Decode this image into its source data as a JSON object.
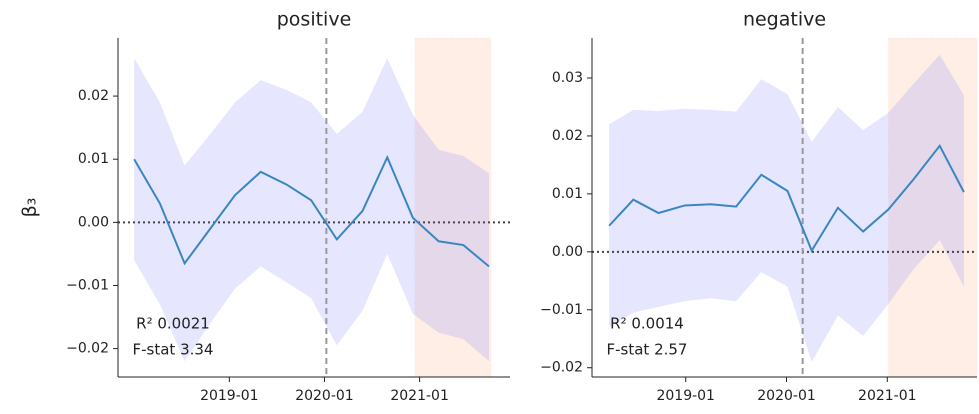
{
  "chart_data": [
    {
      "type": "line",
      "title": "positive",
      "ylabel": "β₃",
      "annotations": [
        "R² 0.0021",
        "F-stat 3.34"
      ],
      "x": [
        2018.0,
        2018.27,
        2018.53,
        2018.8,
        2019.06,
        2019.33,
        2019.6,
        2019.86,
        2020.13,
        2020.4,
        2020.66,
        2020.93,
        2021.2,
        2021.46,
        2021.73
      ],
      "values": [
        0.01,
        0.003,
        -0.0065,
        -0.001,
        0.0043,
        0.008,
        0.006,
        0.0035,
        -0.0027,
        0.0018,
        0.0103,
        0.0007,
        -0.003,
        -0.0036,
        -0.007
      ],
      "upper": [
        0.026,
        0.019,
        0.009,
        0.014,
        0.019,
        0.0225,
        0.021,
        0.019,
        0.014,
        0.0175,
        0.026,
        0.017,
        0.0115,
        0.0105,
        0.0078
      ],
      "lower": [
        -0.006,
        -0.013,
        -0.022,
        -0.016,
        -0.0105,
        -0.007,
        -0.0095,
        -0.012,
        -0.0195,
        -0.014,
        -0.005,
        -0.0145,
        -0.0175,
        -0.0185,
        -0.022
      ],
      "color": "#3a87c0",
      "band_color": "#8080ff",
      "vline": 2020.02,
      "hline": 0,
      "shade": [
        2020.95,
        2021.75
      ],
      "shade_color": "#ffcfb8",
      "xlim": [
        2017.83,
        2021.95
      ],
      "xticks": [
        {
          "value": 2019,
          "label": "2019-01"
        },
        {
          "value": 2020,
          "label": "2020-01"
        },
        {
          "value": 2021,
          "label": "2021-01"
        }
      ],
      "ylim": [
        -0.0245,
        0.0292
      ],
      "yticks": [
        {
          "value": -0.02,
          "label": "−0.02"
        },
        {
          "value": -0.01,
          "label": "−0.01"
        },
        {
          "value": 0,
          "label": "0.00"
        },
        0.01,
        0.02
      ]
    },
    {
      "type": "line",
      "title": "negative",
      "annotations": [
        "R² 0.0014",
        "F-stat 2.57"
      ],
      "x": [
        2018.24,
        2018.48,
        2018.73,
        2018.99,
        2019.25,
        2019.5,
        2019.75,
        2020.01,
        2020.25,
        2020.51,
        2020.76,
        2021.01,
        2021.26,
        2021.52,
        2021.76
      ],
      "values": [
        0.0045,
        0.009,
        0.0067,
        0.008,
        0.0082,
        0.0078,
        0.0133,
        0.0105,
        0.0002,
        0.0076,
        0.0035,
        0.0073,
        0.0125,
        0.0183,
        0.0103
      ],
      "upper": [
        0.022,
        0.0245,
        0.0243,
        0.0247,
        0.0245,
        0.0242,
        0.0298,
        0.0272,
        0.019,
        0.025,
        0.021,
        0.024,
        0.029,
        0.034,
        0.027
      ],
      "lower": [
        -0.013,
        -0.0105,
        -0.0095,
        -0.0085,
        -0.008,
        -0.0085,
        -0.0035,
        -0.006,
        -0.019,
        -0.011,
        -0.0145,
        -0.009,
        -0.003,
        0.002,
        -0.006
      ],
      "color": "#3a87c0",
      "band_color": "#8080ff",
      "vline": 2020.16,
      "hline": 0,
      "shade": [
        2021.01,
        2021.89
      ],
      "shade_color": "#ffcfb8",
      "xlim": [
        2018.07,
        2021.89
      ],
      "xticks": [
        {
          "value": 2019,
          "label": "2019-01"
        },
        {
          "value": 2020,
          "label": "2020-01"
        },
        {
          "value": 2021,
          "label": "2021-01"
        }
      ],
      "ylim": [
        -0.0216,
        0.0369
      ],
      "yticks": [
        {
          "value": -0.02,
          "label": "−0.02"
        },
        {
          "value": -0.01,
          "label": "−0.01"
        },
        {
          "value": 0,
          "label": "0.00"
        },
        0.01,
        0.02,
        0.03
      ]
    }
  ]
}
